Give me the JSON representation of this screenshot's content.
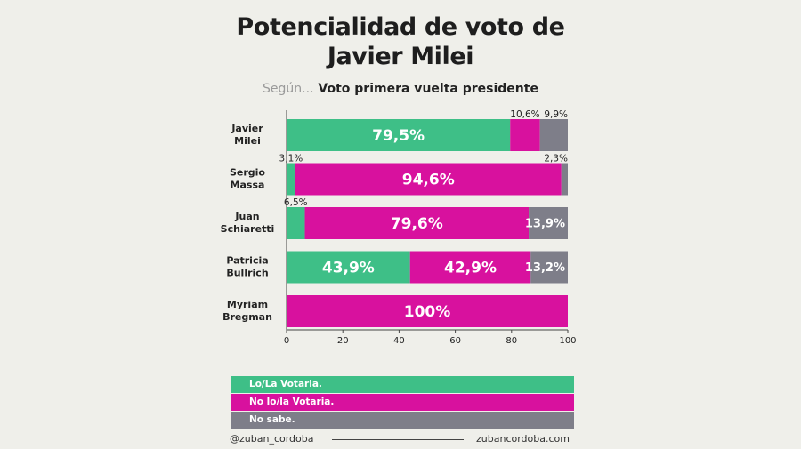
{
  "title_line1": "Potencialidad de voto de",
  "title_line2": "Javier Milei",
  "subtitle_lead": "Según...",
  "subtitle_main": "Voto primera vuelta presidente",
  "colors": {
    "votaria": "#3ebf87",
    "no_votaria": "#d8119e",
    "no_sabe": "#7e7e89",
    "background": "#efefea"
  },
  "chart_data": {
    "type": "bar",
    "orientation": "horizontal",
    "stacked": true,
    "categories": [
      [
        "Javier",
        "Milei"
      ],
      [
        "Sergio",
        "Massa"
      ],
      [
        "Juan",
        "Schiaretti"
      ],
      [
        "Patricia",
        "Bullrich"
      ],
      [
        "Myriam",
        "Bregman"
      ]
    ],
    "series": [
      {
        "name": "Lo/La Votaria.",
        "values": [
          79.5,
          3.1,
          6.5,
          43.9,
          0
        ]
      },
      {
        "name": "No lo/la Votaria.",
        "values": [
          10.6,
          94.6,
          79.6,
          42.9,
          100
        ]
      },
      {
        "name": "No sabe.",
        "values": [
          9.9,
          2.3,
          13.9,
          13.2,
          0
        ]
      }
    ],
    "labels": [
      [
        "79,5%",
        "10,6%",
        "9,9%"
      ],
      [
        "3,1%",
        "94,6%",
        "2,3%"
      ],
      [
        "6,5%",
        "79,6%",
        "13,9%"
      ],
      [
        "43,9%",
        "42,9%",
        "13,2%"
      ],
      [
        "",
        "100%",
        ""
      ]
    ],
    "xlim": [
      0,
      100
    ],
    "xticks": [
      0,
      20,
      40,
      60,
      80,
      100
    ],
    "grid": false,
    "legend_position": "bottom"
  },
  "footer": {
    "handle": "@zuban_cordoba",
    "website": "zubancordoba.com"
  }
}
